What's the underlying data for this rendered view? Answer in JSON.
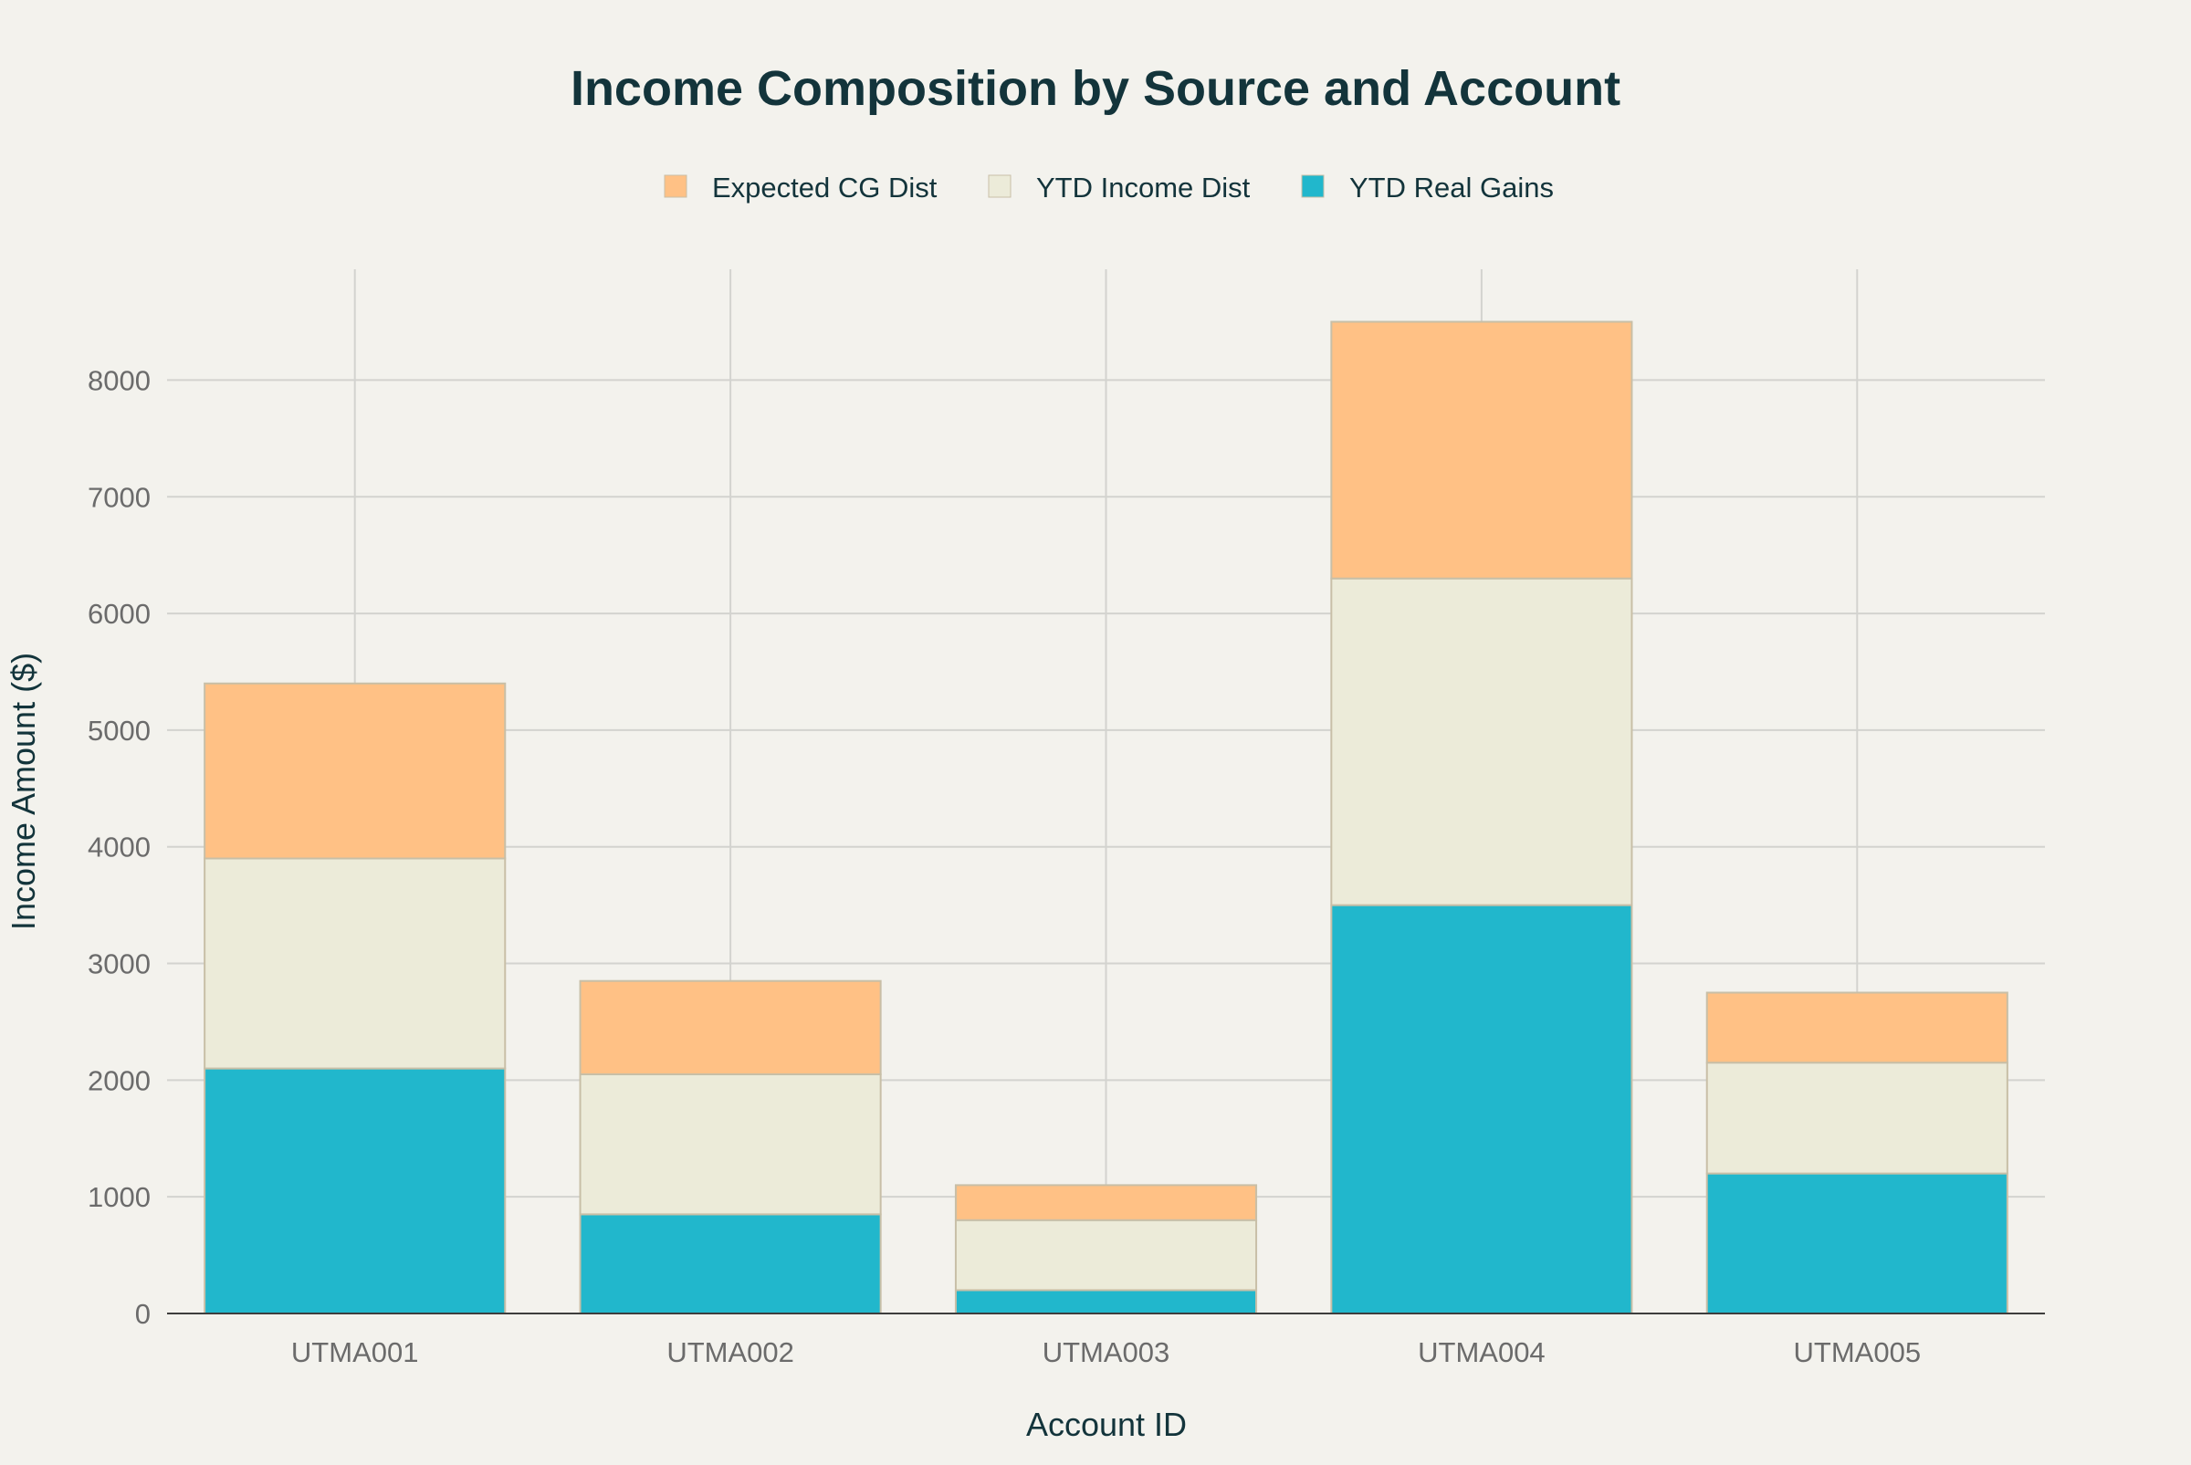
{
  "chart_data": {
    "type": "bar",
    "stacked": true,
    "title": "Income Composition by Source and Account",
    "xlabel": "Account ID",
    "ylabel": "Income Amount ($)",
    "categories": [
      "UTMA001",
      "UTMA002",
      "UTMA003",
      "UTMA004",
      "UTMA005"
    ],
    "series": [
      {
        "name": "YTD Real Gains",
        "color": "#21b7cc",
        "values": [
          2100,
          850,
          200,
          3500,
          1200
        ]
      },
      {
        "name": "YTD Income Dist",
        "color": "#ecebd9",
        "values": [
          1800,
          1200,
          600,
          2800,
          950
        ]
      },
      {
        "name": "Expected CG Dist",
        "color": "#ffc185",
        "values": [
          1500,
          800,
          300,
          2200,
          600
        ]
      }
    ],
    "legend_order": [
      "Expected CG Dist",
      "YTD Income Dist",
      "YTD Real Gains"
    ],
    "legend_position": "top-center",
    "ylim": [
      0,
      8950
    ],
    "yticks": [
      0,
      1000,
      2000,
      3000,
      4000,
      5000,
      6000,
      7000,
      8000
    ],
    "grid": true
  }
}
